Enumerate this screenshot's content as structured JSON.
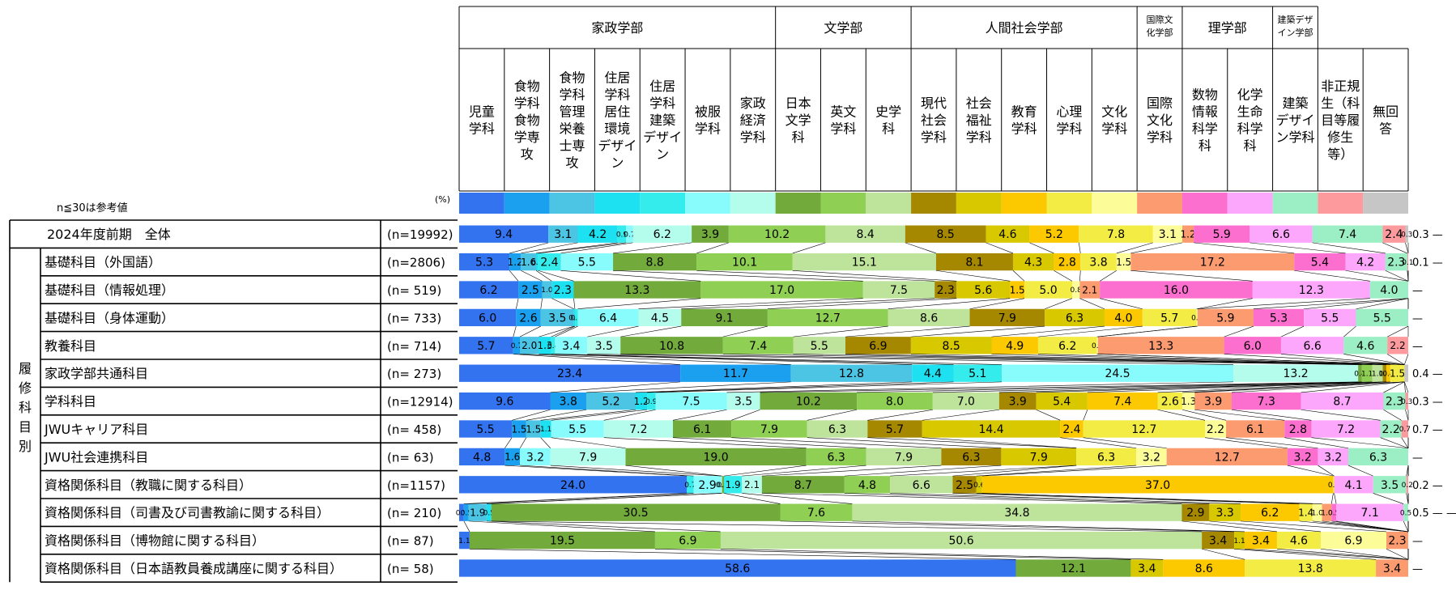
{
  "note": "n≦30は参考値",
  "unit": "(%)",
  "groups": [
    {
      "name": "家政学部",
      "span": 7
    },
    {
      "name": "文学部",
      "span": 3
    },
    {
      "name": "人間社会学部",
      "span": 5
    },
    {
      "name": "国際文化学部",
      "span": 1
    },
    {
      "name": "理学部",
      "span": 2
    },
    {
      "name": "建築デザイン学部",
      "span": 1
    }
  ],
  "side_label": "履修科目別",
  "colors": [
    "#3373f0",
    "#1aa0ee",
    "#4cc4e4",
    "#1de0f0",
    "#35ecec",
    "#88fcfc",
    "#b4fcec",
    "#72aa3c",
    "#8ecf54",
    "#bee39a",
    "#a58800",
    "#d8c800",
    "#fcc800",
    "#f2ec44",
    "#fcfc98",
    "#fc9a70",
    "#fc6fcf",
    "#fca6fc",
    "#9cefc4",
    "#fc9a9e",
    "#c6c6c6"
  ],
  "chart_data": {
    "type": "bar",
    "stacked": true,
    "orientation": "horizontal",
    "categories": [
      {
        "name": "児童学科",
        "label": "児童\n学科"
      },
      {
        "name": "食物学科食物学専攻",
        "label": "食物\n学科\n食物\n学専\n攻"
      },
      {
        "name": "食物学科管理栄養士専攻",
        "label": "食物\n学科\n管理\n栄養\n士専\n攻"
      },
      {
        "name": "住居学科居住環境デザイン",
        "label": "住居\n学科\n居住\n環境\nデザイ\nン"
      },
      {
        "name": "住居学科建築デザイン",
        "label": "住居\n学科\n建築\nデザイ\nン"
      },
      {
        "name": "被服学科",
        "label": "被服\n学科"
      },
      {
        "name": "家政経済学科",
        "label": "家政\n経済\n学科"
      },
      {
        "name": "日本文学科",
        "label": "日本\n文学\n科"
      },
      {
        "name": "英文学科",
        "label": "英文\n学科"
      },
      {
        "name": "史学科",
        "label": "史学\n科"
      },
      {
        "name": "現代社会学科",
        "label": "現代\n社会\n学科"
      },
      {
        "name": "社会福祉学科",
        "label": "社会\n福祉\n学科"
      },
      {
        "name": "教育学科",
        "label": "教育\n学科"
      },
      {
        "name": "心理学科",
        "label": "心理\n学科"
      },
      {
        "name": "文化学科",
        "label": "文化\n学科"
      },
      {
        "name": "国際文化学科",
        "label": "国際\n文化\n学科"
      },
      {
        "name": "数物情報科学科",
        "label": "数物\n情報\n科学\n科"
      },
      {
        "name": "化学生命科学科",
        "label": "化学\n生命\n科学\n科"
      },
      {
        "name": "建築デザイン学科",
        "label": "建築\nデザイ\nン学科"
      },
      {
        "name": "非正規生（科目等履修生等）",
        "label": "非正規\n生（科\n目等履\n修生\n等）"
      },
      {
        "name": "無回答",
        "label": "無回\n答"
      }
    ],
    "rows": [
      {
        "label": "2024年度前期　全体",
        "n": "(n=19992)",
        "values": [
          9.4,
          3.1,
          4.2,
          0.9,
          0.7,
          6.2,
          3.9,
          10.2,
          8.4,
          8.5,
          4.6,
          5.2,
          7.8,
          3.1,
          1.2,
          5.9,
          6.6,
          7.4,
          2.4,
          0.3,
          0.0
        ]
      },
      {
        "label": "基礎科目（外国語）",
        "n": "(n=2806)",
        "values": [
          5.3,
          1.2,
          1.6,
          0.2,
          2.4,
          5.5,
          8.8,
          10.1,
          15.1,
          8.1,
          4.3,
          2.8,
          3.8,
          1.5,
          17.2,
          5.4,
          4.2,
          2.3,
          0.1,
          0.0,
          0.0
        ]
      },
      {
        "label": "基礎科目（情報処理）",
        "n": "(n=  519)",
        "values": [
          6.2,
          2.5,
          1.0,
          2.3,
          13.3,
          17.0,
          7.5,
          2.3,
          5.6,
          1.5,
          5.0,
          0.8,
          2.1,
          16.0,
          12.3,
          4.0,
          0.0,
          0.0,
          0.0,
          0.0,
          0.0
        ]
      },
      {
        "label": "基礎科目（身体運動）",
        "n": "(n=  733)",
        "values": [
          6.0,
          2.6,
          3.5,
          0.1,
          0.3,
          6.4,
          4.5,
          9.1,
          12.7,
          8.6,
          7.9,
          6.3,
          4.0,
          5.7,
          0.1,
          5.9,
          5.3,
          5.5,
          5.5,
          0.0,
          0.0
        ]
      },
      {
        "label": "教養科目",
        "n": "(n=  714)",
        "values": [
          5.7,
          0.7,
          2.0,
          1.3,
          0.4,
          3.4,
          3.5,
          10.8,
          7.4,
          5.5,
          6.9,
          8.5,
          4.9,
          6.2,
          0.1,
          13.3,
          6.0,
          6.6,
          4.6,
          2.2,
          0.0
        ]
      },
      {
        "label": "家政学部共通科目",
        "n": "(n=  273)",
        "values": [
          23.4,
          11.7,
          12.8,
          4.4,
          5.1,
          24.5,
          13.2,
          0.4,
          1.1,
          1.1,
          0.4,
          0.0,
          0.4,
          1.5,
          0.0,
          0.0,
          0.0,
          0.0,
          0.0,
          0.0,
          0.4
        ]
      },
      {
        "label": "学科科目",
        "n": "(n=12914)",
        "values": [
          9.6,
          3.8,
          5.2,
          1.2,
          0.9,
          7.5,
          3.5,
          10.2,
          8.0,
          7.0,
          3.9,
          5.4,
          7.4,
          2.6,
          1.3,
          3.9,
          7.3,
          8.7,
          2.3,
          0.3,
          0.0
        ]
      },
      {
        "label": "JWUキャリア科目",
        "n": "(n=  458)",
        "values": [
          5.5,
          1.5,
          1.5,
          1.1,
          5.5,
          7.2,
          6.1,
          7.9,
          6.3,
          5.7,
          14.4,
          2.4,
          12.7,
          2.2,
          6.1,
          2.8,
          7.2,
          2.2,
          0.7,
          0.0,
          0.0
        ]
      },
      {
        "label": "JWU社会連携科目",
        "n": "(n=   63)",
        "values": [
          4.8,
          1.6,
          3.2,
          7.9,
          19.0,
          6.3,
          7.9,
          6.3,
          7.9,
          0.0,
          6.3,
          3.2,
          12.7,
          3.2,
          3.2,
          6.3,
          0.0,
          0.0,
          0.0,
          0.0,
          0.0
        ]
      },
      {
        "label": "資格関係科目（教職に関する科目）",
        "n": "(n=1157)",
        "values": [
          24.0,
          0.7,
          2.9,
          0.1,
          0.2,
          1.9,
          2.1,
          8.7,
          4.8,
          6.6,
          2.5,
          0.6,
          37.0,
          0.1,
          4.1,
          3.5,
          0.2,
          0.0,
          0.0,
          0.0,
          0.0
        ]
      },
      {
        "label": "資格関係科目（司書及び司書教諭に関する科目）",
        "n": "(n=  210)",
        "values": [
          0.5,
          0.5,
          1.9,
          0.5,
          30.5,
          7.6,
          34.8,
          2.9,
          3.3,
          6.2,
          1.4,
          1.0,
          1.0,
          0.5,
          7.1,
          0.5,
          0.0,
          0.0,
          0.0,
          0.0,
          0.0
        ]
      },
      {
        "label": "資格関係科目（博物館に関する科目）",
        "n": "(n=   87)",
        "values": [
          1.1,
          19.5,
          6.9,
          50.6,
          3.4,
          1.1,
          3.4,
          4.6,
          6.9,
          2.3,
          0.0,
          0.0,
          0.0,
          0.0,
          0.0,
          0.0,
          0.0,
          0.0,
          0.0,
          0.0,
          0.0
        ]
      },
      {
        "label": "資格関係科目（日本語教員養成講座に関する科目）",
        "n": "(n=   58)",
        "values": [
          58.6,
          12.1,
          3.4,
          8.6,
          13.8,
          3.4,
          0.0,
          0.0,
          0.0,
          0.0,
          0.0,
          0.0,
          0.0,
          0.0,
          0.0,
          0.0,
          0.0,
          0.0,
          0.0,
          0.0,
          0.0
        ]
      }
    ],
    "row_color_index": [
      [
        0,
        2,
        3,
        4,
        5,
        6,
        7,
        8,
        9,
        10,
        11,
        12,
        13,
        14,
        15,
        16,
        17,
        18,
        19,
        20,
        20
      ],
      [
        0,
        1,
        2,
        3,
        4,
        5,
        7,
        8,
        9,
        10,
        11,
        12,
        13,
        14,
        15,
        16,
        17,
        18,
        19,
        20,
        20
      ],
      [
        0,
        1,
        2,
        3,
        7,
        8,
        9,
        10,
        11,
        12,
        13,
        14,
        15,
        16,
        17,
        18,
        19,
        20,
        20,
        20,
        20
      ],
      [
        0,
        1,
        2,
        3,
        4,
        5,
        6,
        7,
        8,
        9,
        10,
        11,
        12,
        13,
        14,
        15,
        16,
        17,
        18,
        19,
        20
      ],
      [
        0,
        1,
        2,
        3,
        4,
        5,
        6,
        7,
        8,
        9,
        10,
        11,
        12,
        13,
        14,
        15,
        16,
        17,
        18,
        19,
        20
      ],
      [
        0,
        1,
        2,
        3,
        4,
        5,
        6,
        7,
        8,
        9,
        10,
        11,
        12,
        13,
        14,
        15,
        16,
        17,
        18,
        19,
        20
      ],
      [
        0,
        1,
        2,
        3,
        4,
        5,
        6,
        7,
        8,
        9,
        10,
        11,
        12,
        13,
        14,
        15,
        16,
        17,
        18,
        19,
        20
      ],
      [
        0,
        1,
        2,
        3,
        5,
        6,
        7,
        8,
        9,
        10,
        11,
        12,
        13,
        14,
        15,
        16,
        17,
        18,
        19,
        20,
        20
      ],
      [
        0,
        1,
        5,
        6,
        7,
        8,
        9,
        10,
        11,
        12,
        13,
        14,
        15,
        16,
        17,
        18,
        19,
        20,
        20,
        20,
        20
      ],
      [
        0,
        4,
        5,
        6,
        7,
        4,
        6,
        7,
        8,
        9,
        10,
        11,
        12,
        13,
        17,
        18,
        19,
        20,
        20,
        20,
        20
      ],
      [
        0,
        1,
        2,
        3,
        7,
        8,
        9,
        10,
        11,
        12,
        13,
        14,
        15,
        16,
        17,
        18,
        20,
        20,
        20,
        20,
        20
      ],
      [
        0,
        7,
        8,
        9,
        10,
        11,
        12,
        13,
        14,
        15,
        20,
        20,
        20,
        20,
        20,
        20,
        20,
        20,
        20,
        20,
        20
      ],
      [
        0,
        7,
        11,
        12,
        13,
        15,
        20,
        20,
        20,
        20,
        20,
        20,
        20,
        20,
        20,
        20,
        20,
        20,
        20,
        20,
        20
      ]
    ],
    "label_overrides": {
      "5": [
        "23.4",
        "11.7",
        "12.8",
        "4.4",
        "5.1",
        "24.5",
        "13.2",
        "0.4",
        "1.1",
        "1.1",
        "0.4",
        "",
        "0.4",
        "1.5",
        "",
        "",
        "",
        "",
        "",
        "",
        ""
      ]
    },
    "dash_marks": [
      "0.3  —",
      "0.1  —",
      "—",
      "—",
      "—",
      "0.4  —",
      "0.3  —",
      "0.7  —",
      "—",
      "0.2 —",
      "0.5 —  —",
      "—",
      "—"
    ],
    "xlim": [
      0,
      100
    ]
  }
}
